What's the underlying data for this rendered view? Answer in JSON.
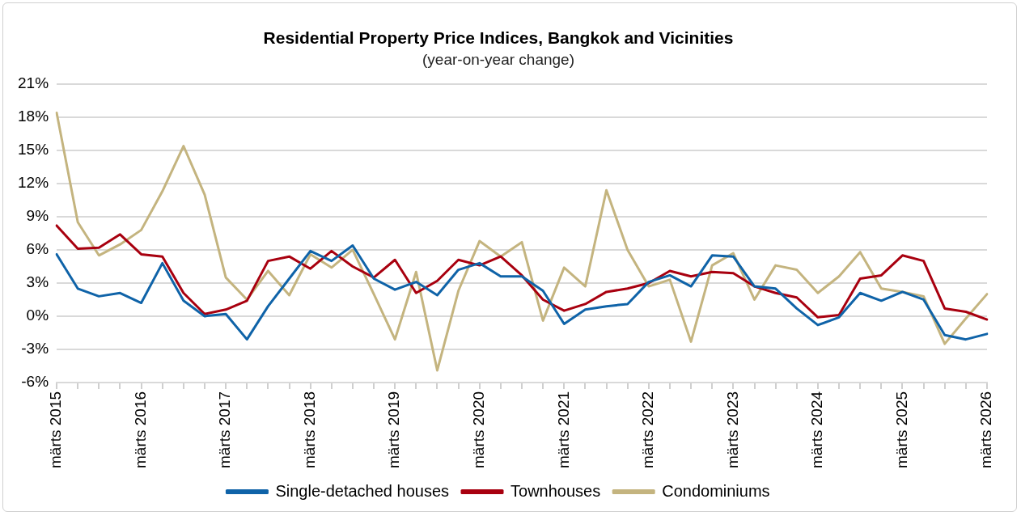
{
  "chart_data": {
    "type": "line",
    "title": "Residential Property Price Indices, Bangkok and Vicinities",
    "subtitle": "(year-on-year change)",
    "categories": [
      "märts 2015",
      null,
      null,
      null,
      "märts 2016",
      null,
      null,
      null,
      "märts 2017",
      null,
      null,
      null,
      "märts 2018",
      null,
      null,
      null,
      "märts 2019",
      null,
      null,
      null,
      "märts 2020",
      null,
      null,
      null,
      "märts 2021",
      null,
      null,
      null,
      "märts 2022",
      null,
      null,
      null,
      "märts 2023",
      null,
      null,
      null,
      "märts 2024",
      null,
      null,
      null,
      "märts 2025",
      null,
      null,
      null,
      "märts 2026"
    ],
    "series": [
      {
        "name": "Single-detached houses",
        "color": "#0f63a8",
        "values": [
          5.6,
          2.5,
          1.8,
          2.1,
          1.2,
          4.8,
          1.4,
          0.0,
          0.2,
          -2.1,
          0.9,
          3.4,
          5.9,
          5.0,
          6.4,
          3.4,
          2.4,
          3.1,
          1.9,
          4.2,
          4.8,
          3.6,
          3.6,
          2.3,
          -0.7,
          0.6,
          0.9,
          1.1,
          3.1,
          3.7,
          2.7,
          5.5,
          5.4,
          2.7,
          2.5,
          0.7,
          -0.8,
          -0.1,
          2.1,
          1.4,
          2.2,
          1.5,
          -1.7,
          -2.1,
          -1.6
        ]
      },
      {
        "name": "Townhouses",
        "color": "#a8000f",
        "values": [
          8.2,
          6.1,
          6.2,
          7.4,
          5.6,
          5.4,
          2.1,
          0.2,
          0.6,
          1.4,
          5.0,
          5.4,
          4.3,
          5.9,
          4.5,
          3.5,
          5.1,
          2.1,
          3.2,
          5.1,
          4.6,
          5.4,
          3.7,
          1.5,
          0.5,
          1.1,
          2.2,
          2.5,
          3.0,
          4.1,
          3.6,
          4.0,
          3.9,
          2.7,
          2.1,
          1.7,
          -0.1,
          0.1,
          3.4,
          3.7,
          5.5,
          5.0,
          0.7,
          0.4,
          -0.3
        ]
      },
      {
        "name": "Condominiums",
        "color": "#c4b47f",
        "values": [
          18.4,
          8.5,
          5.5,
          6.5,
          7.8,
          11.3,
          15.4,
          11.0,
          3.5,
          1.5,
          4.1,
          1.9,
          5.6,
          4.4,
          6.0,
          2.0,
          -2.1,
          4.0,
          -4.9,
          2.3,
          6.8,
          5.4,
          6.7,
          -0.4,
          4.4,
          2.7,
          11.4,
          6.0,
          2.7,
          3.3,
          -2.3,
          4.6,
          5.7,
          1.5,
          4.6,
          4.2,
          2.1,
          3.6,
          5.8,
          2.5,
          2.2,
          1.8,
          -2.5,
          -0.2,
          2.0
        ]
      }
    ],
    "ylim": [
      -6,
      21
    ],
    "yticks": [
      {
        "value": -6,
        "label": "-6%"
      },
      {
        "value": -3,
        "label": "-3%"
      },
      {
        "value": 0,
        "label": "0%"
      },
      {
        "value": 3,
        "label": "3%"
      },
      {
        "value": 6,
        "label": "6%"
      },
      {
        "value": 9,
        "label": "9%"
      },
      {
        "value": 12,
        "label": "12%"
      },
      {
        "value": 15,
        "label": "15%"
      },
      {
        "value": 18,
        "label": "18%"
      },
      {
        "value": 21,
        "label": "21%"
      }
    ],
    "grid": "y",
    "legend": "bottom",
    "marker": "none",
    "line_style": "solid"
  }
}
